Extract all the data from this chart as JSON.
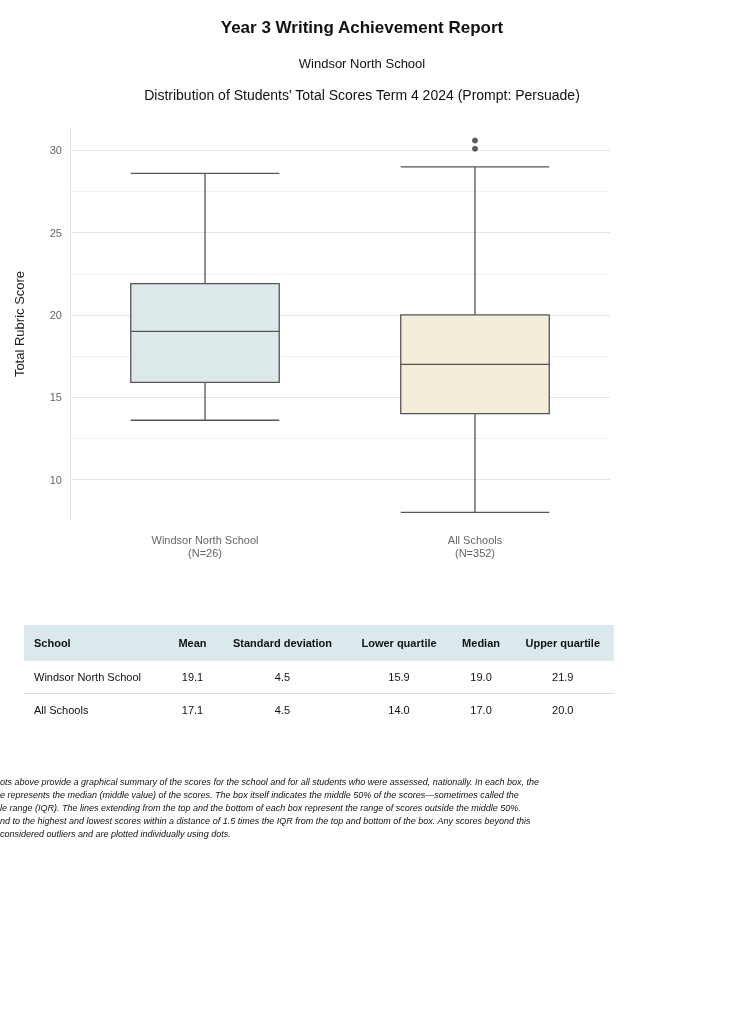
{
  "chart_data": [
    {
      "type": "box",
      "title": "Year 3 Writing Achievement Report",
      "subtitle": "Windsor North School",
      "ylabel": "Total Rubric Score",
      "categories": [
        "Windsor North School\n(N=26)",
        "All Schools\n(N=352)"
      ],
      "colors": [
        "#dde8ea",
        "#f3edd9"
      ],
      "boxes": [
        {
          "low": 13.6,
          "q1": 15.9,
          "median": 19.0,
          "q3": 21.9,
          "high": 28.6
        },
        {
          "low": 8.0,
          "q1": 14.0,
          "median": 17.0,
          "q3": 20.0,
          "high": 29.0,
          "outliers": [
            30.1,
            30.6
          ]
        }
      ],
      "ylim": [
        7.6,
        31.3
      ],
      "yticks": [
        10,
        15,
        20,
        25,
        30
      ],
      "grid": "y",
      "annotations": [
        "Distribution of Students' Total Scores Term 4 2024 (Prompt: Persuade)"
      ]
    },
    {
      "type": "other",
      "xlabel": "School",
      "categories": [
        "Windsor North School",
        "All Schools"
      ],
      "series": [
        {
          "name": "Mean",
          "values": [
            19.1,
            17.1
          ],
          "value_labels": [
            "19.1",
            "17.1"
          ]
        },
        {
          "name": "Standard deviation",
          "values": [
            4.5,
            4.5
          ],
          "value_labels": [
            "4.5",
            "4.5"
          ]
        },
        {
          "name": "Lower quartile",
          "values": [
            15.9,
            14.0
          ],
          "value_labels": [
            "15.9",
            "14.0"
          ]
        },
        {
          "name": "Median",
          "values": [
            19.0,
            17.0
          ],
          "value_labels": [
            "19.0",
            "17.0"
          ]
        },
        {
          "name": "Upper quartile",
          "values": [
            21.9,
            20.0
          ],
          "value_labels": [
            "21.9",
            "20.0"
          ]
        }
      ],
      "annotations": [
        "ots above provide a graphical summary of the scores for the school and for all students who were assessed, nationally. In each box, the\ne represents the median (middle value) of the scores. The box itself indicates the middle 50% of the scores—sometimes called the\nle range (IQR). The lines extending from the top and the bottom of each box represent the range of scores outside the middle 50%.\nnd to the highest and lowest scores within a distance of 1.5 times the IQR from the top and bottom of the box. Any scores beyond this\nconsidered outliers and are plotted individually using dots."
      ]
    }
  ]
}
